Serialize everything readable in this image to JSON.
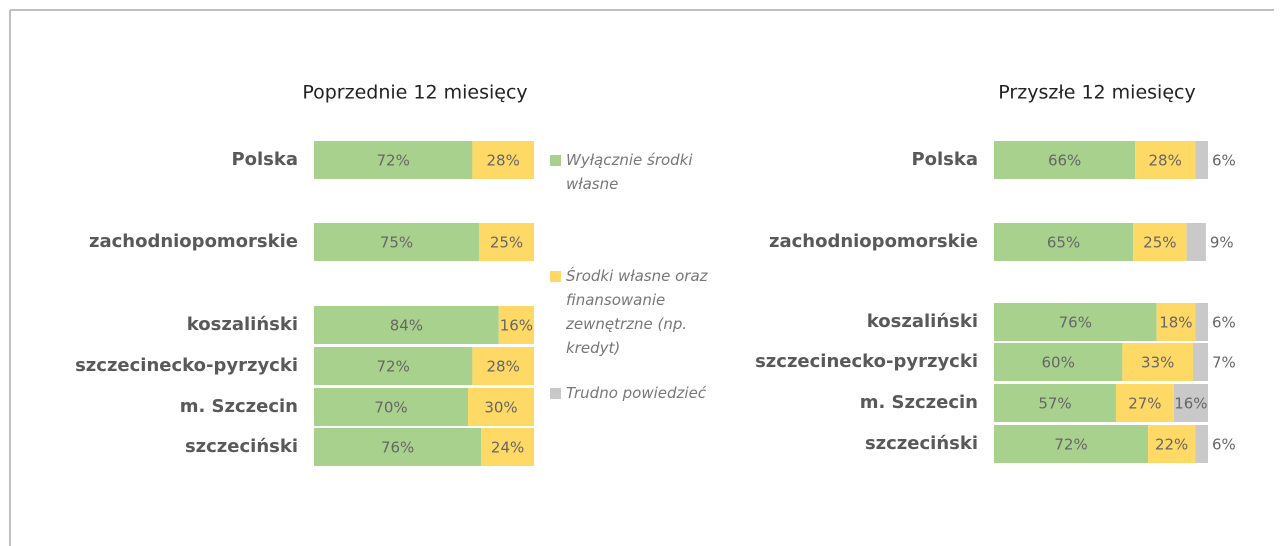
{
  "chart_data": [
    {
      "type": "bar",
      "orientation": "horizontal",
      "stacked": true,
      "title": "Poprzednie 12 miesięcy",
      "categories": [
        "Polska",
        "zachodniopomorskie",
        "koszaliński",
        "szczecinecko-pyrzycki",
        "m. Szczecin",
        "szczeciński"
      ],
      "xlim": [
        0,
        100
      ],
      "series": [
        {
          "color": "#a9d18e",
          "values": [
            72,
            75,
            84,
            72,
            70,
            76
          ],
          "value_labels": [
            "72%",
            "75%",
            "84%",
            "72%",
            "70%",
            "76%"
          ]
        },
        {
          "color": "#ffd966",
          "values": [
            28,
            25,
            16,
            28,
            30,
            24
          ],
          "value_labels": [
            "28%",
            "25%",
            "16%",
            "28%",
            "30%",
            "24%"
          ]
        }
      ]
    },
    {
      "type": "bar",
      "orientation": "horizontal",
      "stacked": true,
      "title": "Przyszłe 12 miesięcy",
      "categories": [
        "Polska",
        "zachodniopomorskie",
        "koszaliński",
        "szczecinecko-pyrzycki",
        "m. Szczecin",
        "szczeciński"
      ],
      "xlim": [
        0,
        100
      ],
      "series": [
        {
          "name": "Wyłącznie środki własne",
          "color": "#a9d18e",
          "values": [
            66,
            65,
            76,
            60,
            57,
            72
          ],
          "value_labels": [
            "66%",
            "65%",
            "76%",
            "60%",
            "57%",
            "72%"
          ]
        },
        {
          "name": "Środki własne oraz finansowanie zewnętrzne (np. kredyt)",
          "color": "#ffd966",
          "values": [
            28,
            25,
            18,
            33,
            27,
            22
          ],
          "value_labels": [
            "28%",
            "25%",
            "18%",
            "33%",
            "27%",
            "22%"
          ]
        },
        {
          "name": "Trudno powiedzieć",
          "color": "#c9c9c9",
          "values": [
            6,
            9,
            6,
            7,
            16,
            6
          ],
          "value_labels": [
            "6%",
            "9%",
            "6%",
            "7%",
            "16%",
            "6%"
          ]
        }
      ]
    }
  ]
}
